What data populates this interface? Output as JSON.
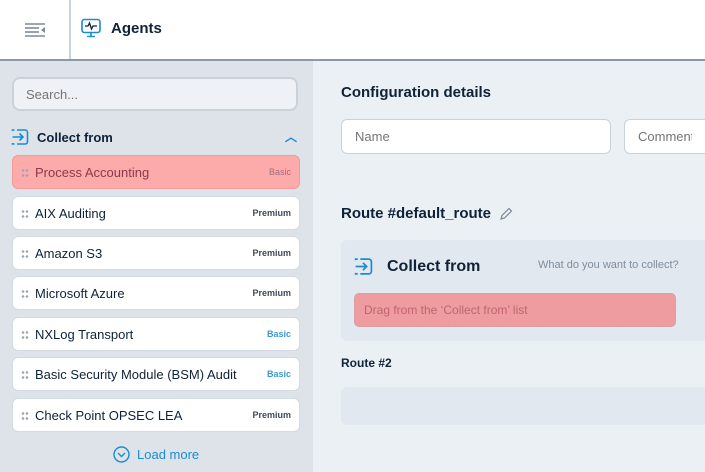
{
  "header": {
    "title": "Agents",
    "menu_icon": "menu-collapse-icon",
    "title_icon": "monitor-pulse-icon"
  },
  "sidebar": {
    "search_placeholder": "Search...",
    "section": {
      "label": "Collect from",
      "icon": "enter-arrow-icon",
      "collapse_icon": "chevron-up-icon"
    },
    "items": [
      {
        "label": "Process Accounting",
        "badge": "Basic",
        "active": true
      },
      {
        "label": "AIX Auditing",
        "badge": "Premium"
      },
      {
        "label": "Amazon S3",
        "badge": "Premium"
      },
      {
        "label": "Microsoft Azure",
        "badge": "Premium"
      },
      {
        "label": "NXLog Transport",
        "badge": "Basic"
      },
      {
        "label": "Basic Security Module (BSM) Audit",
        "badge": "Basic"
      },
      {
        "label": "Check Point OPSEC LEA",
        "badge": "Premium"
      }
    ],
    "load_more": "Load more"
  },
  "main": {
    "title": "Configuration details",
    "name_placeholder": "Name",
    "comment_placeholder": "Comment",
    "route_title": "Route #default_route",
    "card": {
      "title": "Collect from",
      "hint": "What do you want to collect?",
      "drop_text": "Drag from the ‘Collect from’ list"
    },
    "route2_title": "Route #2"
  },
  "colors": {
    "accent": "#1a8ccf",
    "active_item": "#fdaaaa",
    "drop_zone": "#ee9c9f"
  }
}
